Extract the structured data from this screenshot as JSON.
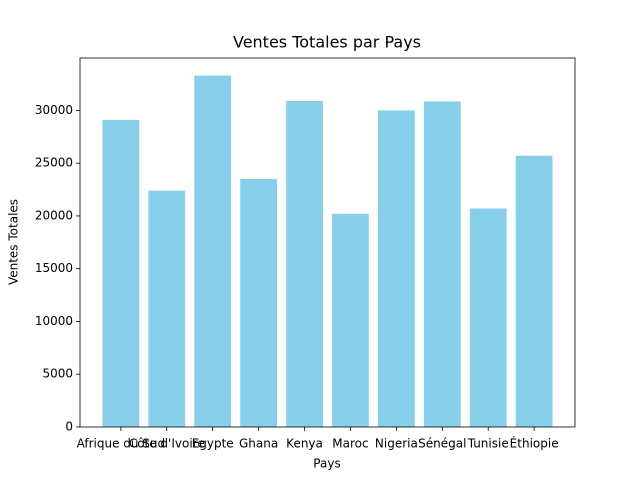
{
  "chart_data": {
    "type": "bar",
    "title": "Ventes Totales par Pays",
    "xlabel": "Pays",
    "ylabel": "Ventes Totales",
    "categories": [
      "Afrique du Sud",
      "Côte d'Ivoire",
      "Egypte",
      "Ghana",
      "Kenya",
      "Maroc",
      "Nigeria",
      "Sénégal",
      "Tunisie",
      "Éthiopie"
    ],
    "values": [
      29100,
      22400,
      33300,
      23500,
      30900,
      20200,
      30000,
      30850,
      20700,
      25700
    ],
    "color": "#87ceeb",
    "ylim": [
      0,
      34965
    ],
    "yticks": [
      0,
      5000,
      10000,
      15000,
      20000,
      25000,
      30000
    ],
    "grid": false
  }
}
